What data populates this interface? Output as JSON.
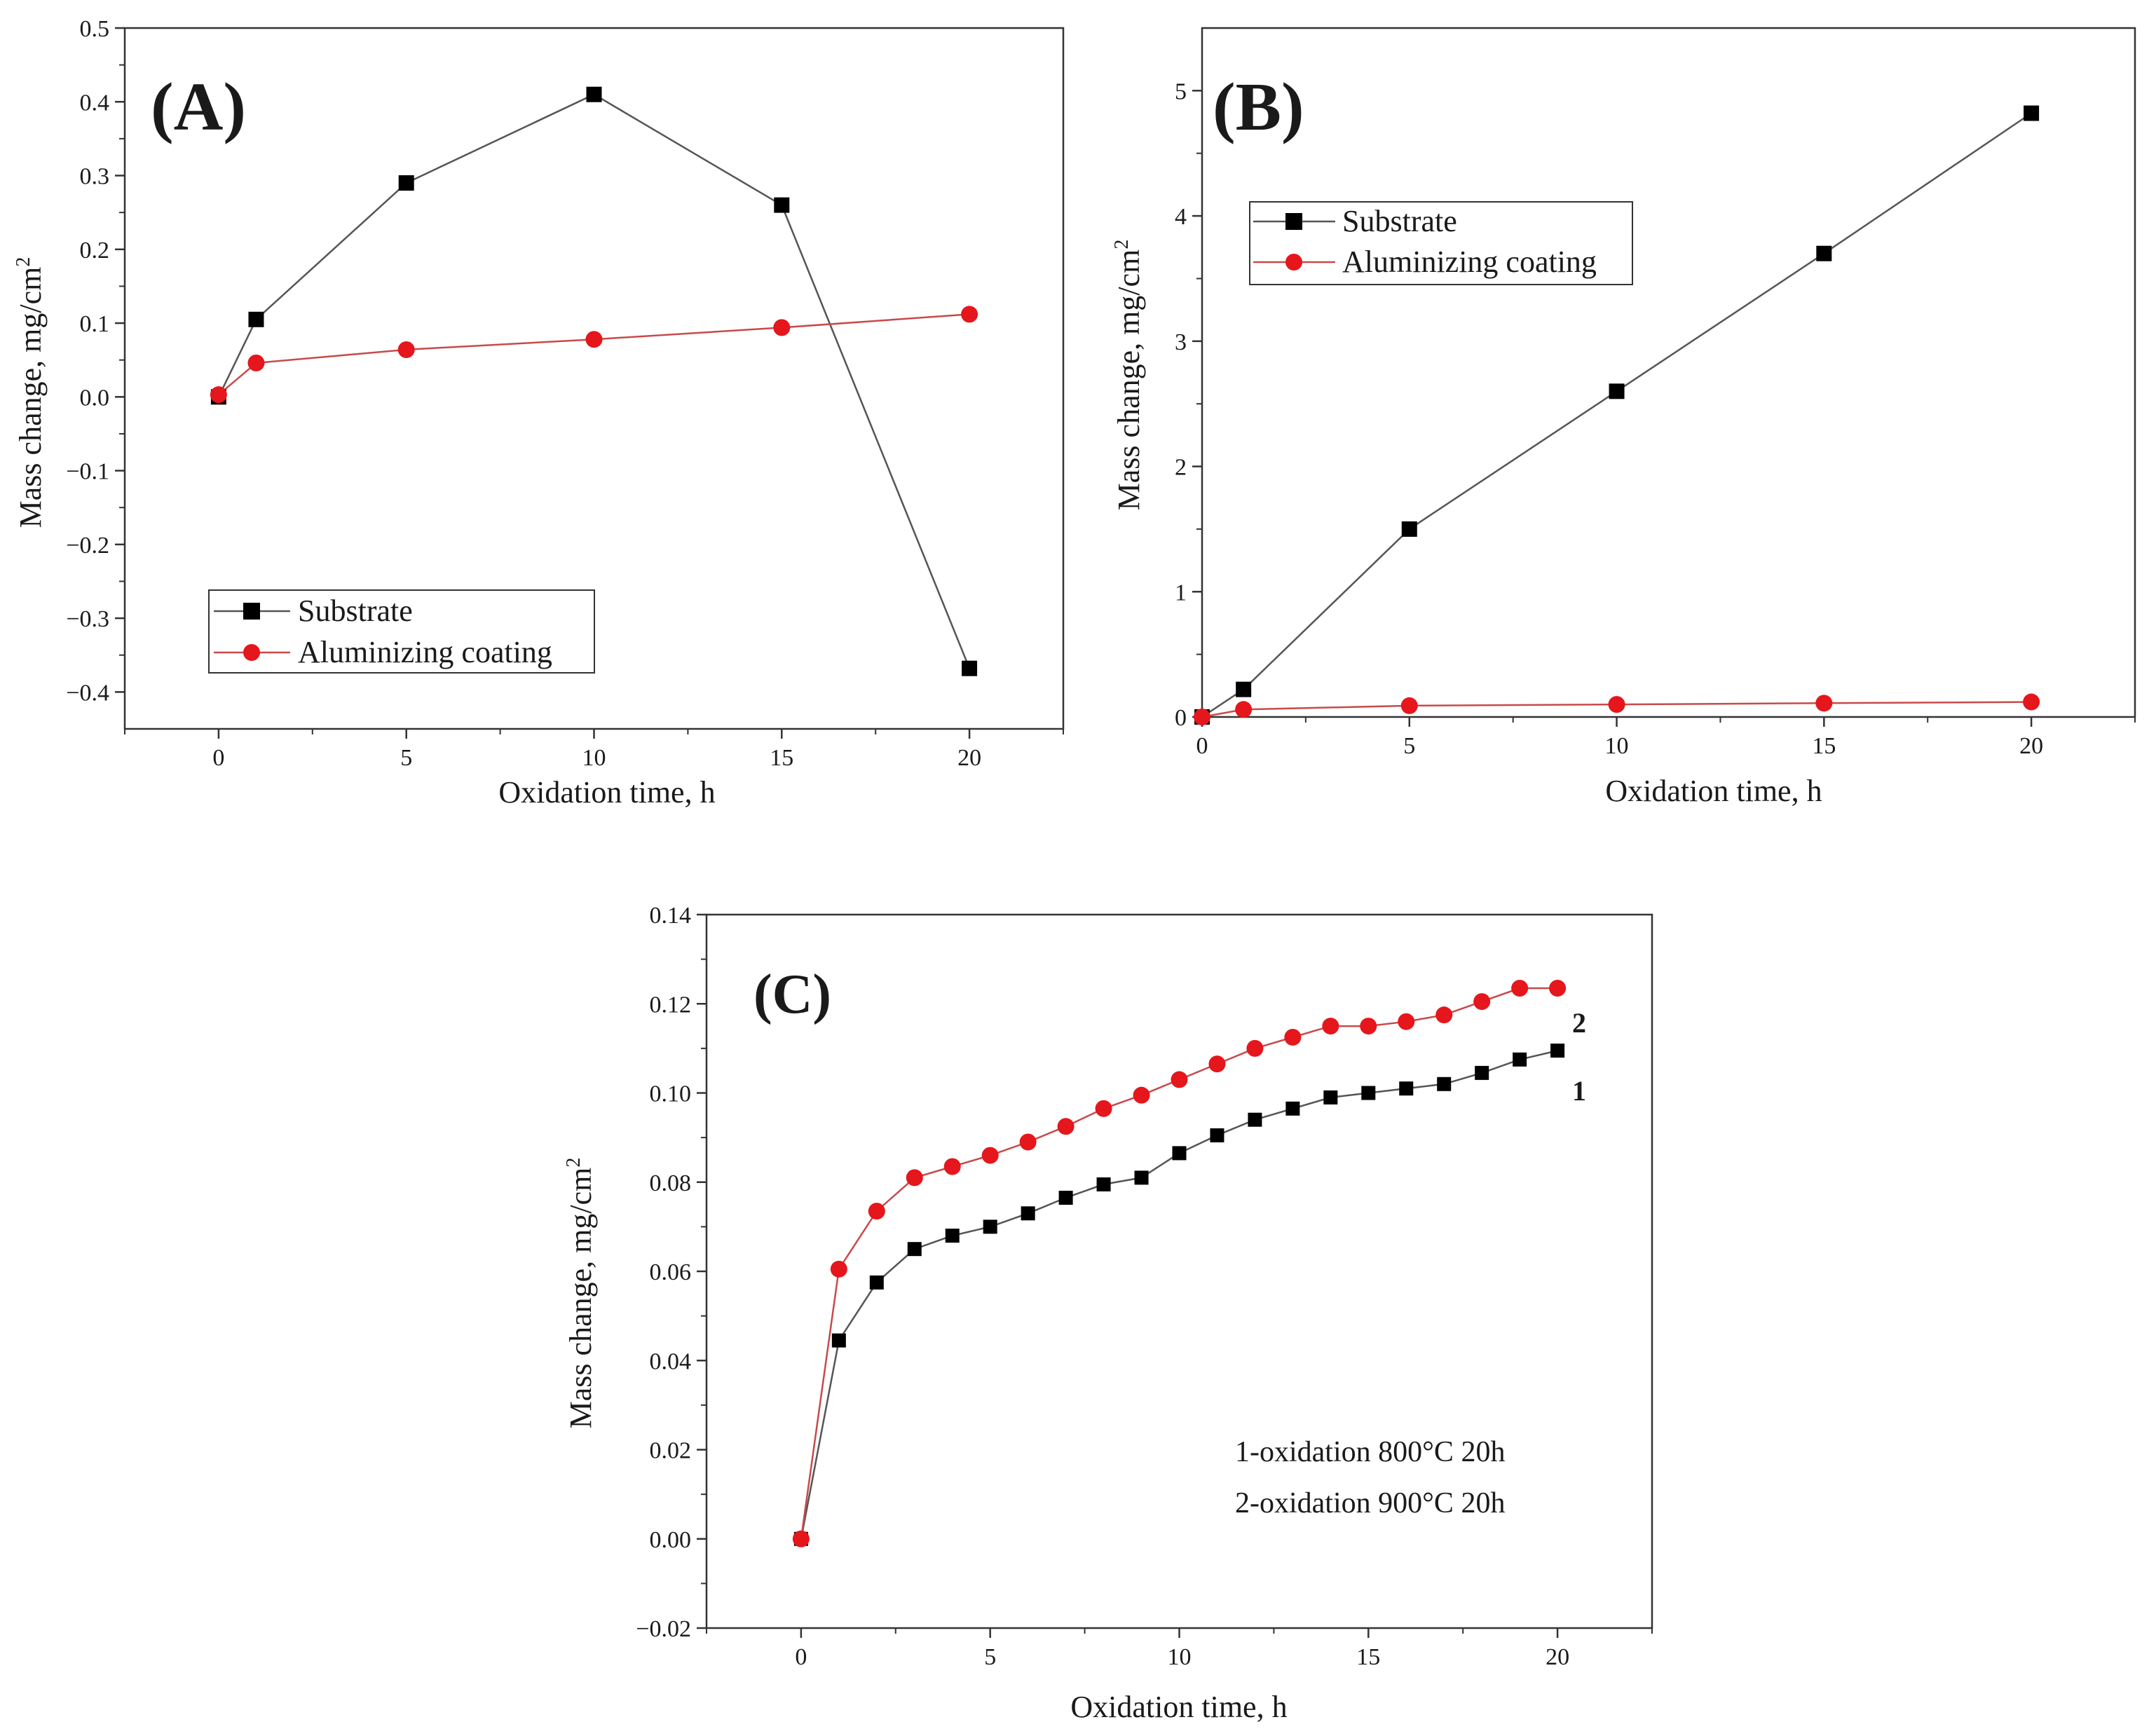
{
  "figure_title": "",
  "colors": {
    "series_black": "#000000",
    "series_red": "#e5161c",
    "line_black": "#555555",
    "line_red": "#c84a4a",
    "axis": "#333333"
  },
  "chart_data": [
    {
      "id": "A",
      "type": "line",
      "panel_label": "(A)",
      "xlabel": "Oxidation time, h",
      "ylabel": "Mass change, mg/cm",
      "ylabel_sup": "2",
      "xlim": [
        -2.5,
        22.5
      ],
      "ylim": [
        -0.45,
        0.5
      ],
      "xticks": [
        0,
        5,
        10,
        15,
        20
      ],
      "yticks": [
        -0.4,
        -0.3,
        -0.2,
        -0.1,
        0.0,
        0.1,
        0.2,
        0.3,
        0.4,
        0.5
      ],
      "ytick_labels": [
        "−0.4",
        "−0.3",
        "−0.2",
        "−0.1",
        "0.0",
        "0.1",
        "0.2",
        "0.3",
        "0.4",
        "0.5"
      ],
      "legend_position": "bottom-left",
      "series": [
        {
          "name": "Substrate",
          "marker": "square",
          "color": "#000000",
          "line_color": "#555555",
          "x": [
            0,
            1,
            5,
            10,
            15,
            20
          ],
          "y": [
            0.0,
            0.105,
            0.29,
            0.41,
            0.26,
            -0.368
          ]
        },
        {
          "name": "Aluminizing coating",
          "marker": "circle",
          "color": "#e5161c",
          "line_color": "#c84a4a",
          "x": [
            0,
            1,
            5,
            10,
            15,
            20
          ],
          "y": [
            0.003,
            0.046,
            0.064,
            0.078,
            0.094,
            0.112
          ]
        }
      ]
    },
    {
      "id": "B",
      "type": "line",
      "panel_label": "(B)",
      "xlabel": "Oxidation time, h",
      "ylabel": "Mass change, mg/cm",
      "ylabel_sup": "2",
      "xlim": [
        0,
        22.5
      ],
      "ylim": [
        0,
        5.5
      ],
      "xticks": [
        0,
        5,
        10,
        15,
        20
      ],
      "yticks": [
        0,
        1,
        2,
        3,
        4,
        5
      ],
      "ytick_labels": [
        "0",
        "1",
        "2",
        "3",
        "4",
        "5"
      ],
      "legend_position": "top-left",
      "series": [
        {
          "name": "Substrate",
          "marker": "square",
          "color": "#000000",
          "line_color": "#555555",
          "x": [
            0,
            1,
            5,
            10,
            15,
            20
          ],
          "y": [
            0.0,
            0.22,
            1.5,
            2.6,
            3.7,
            4.82
          ]
        },
        {
          "name": "Aluminizing coating",
          "marker": "circle",
          "color": "#e5161c",
          "line_color": "#c84a4a",
          "x": [
            0,
            1,
            5,
            10,
            15,
            20
          ],
          "y": [
            0.0,
            0.06,
            0.09,
            0.1,
            0.11,
            0.12
          ]
        }
      ]
    },
    {
      "id": "C",
      "type": "line",
      "panel_label": "(C)",
      "xlabel": "Oxidation time, h",
      "ylabel": "Mass change, mg/cm",
      "ylabel_sup": "2",
      "xlim": [
        -2.5,
        22.5
      ],
      "ylim": [
        -0.02,
        0.14
      ],
      "xticks": [
        0,
        5,
        10,
        15,
        20
      ],
      "yticks": [
        -0.02,
        0.0,
        0.02,
        0.04,
        0.06,
        0.08,
        0.1,
        0.12,
        0.14
      ],
      "ytick_labels": [
        "−0.02",
        "0.00",
        "0.02",
        "0.04",
        "0.06",
        "0.08",
        "0.10",
        "0.12",
        "0.14"
      ],
      "annotations": [
        "1-oxidation 800°C 20h",
        "2-oxidation 900°C 20h"
      ],
      "series": [
        {
          "name": "1",
          "marker": "square",
          "color": "#000000",
          "line_color": "#555555",
          "x": [
            0,
            1,
            2,
            3,
            4,
            5,
            6,
            7,
            8,
            9,
            10,
            11,
            12,
            13,
            14,
            15,
            16,
            17,
            18,
            19,
            20
          ],
          "y": [
            0.0,
            0.0445,
            0.0575,
            0.065,
            0.068,
            0.07,
            0.073,
            0.0765,
            0.0795,
            0.081,
            0.0865,
            0.0905,
            0.094,
            0.0965,
            0.099,
            0.1,
            0.101,
            0.102,
            0.1045,
            0.1075,
            0.1095
          ]
        },
        {
          "name": "2",
          "marker": "circle",
          "color": "#e5161c",
          "line_color": "#c84a4a",
          "x": [
            0,
            1,
            2,
            3,
            4,
            5,
            6,
            7,
            8,
            9,
            10,
            11,
            12,
            13,
            14,
            15,
            16,
            17,
            18,
            19,
            20
          ],
          "y": [
            0.0,
            0.0605,
            0.0735,
            0.081,
            0.0835,
            0.086,
            0.089,
            0.0925,
            0.0965,
            0.0995,
            0.103,
            0.1065,
            0.11,
            0.1125,
            0.115,
            0.115,
            0.116,
            0.1175,
            0.1205,
            0.1235,
            0.1235
          ]
        }
      ]
    }
  ]
}
